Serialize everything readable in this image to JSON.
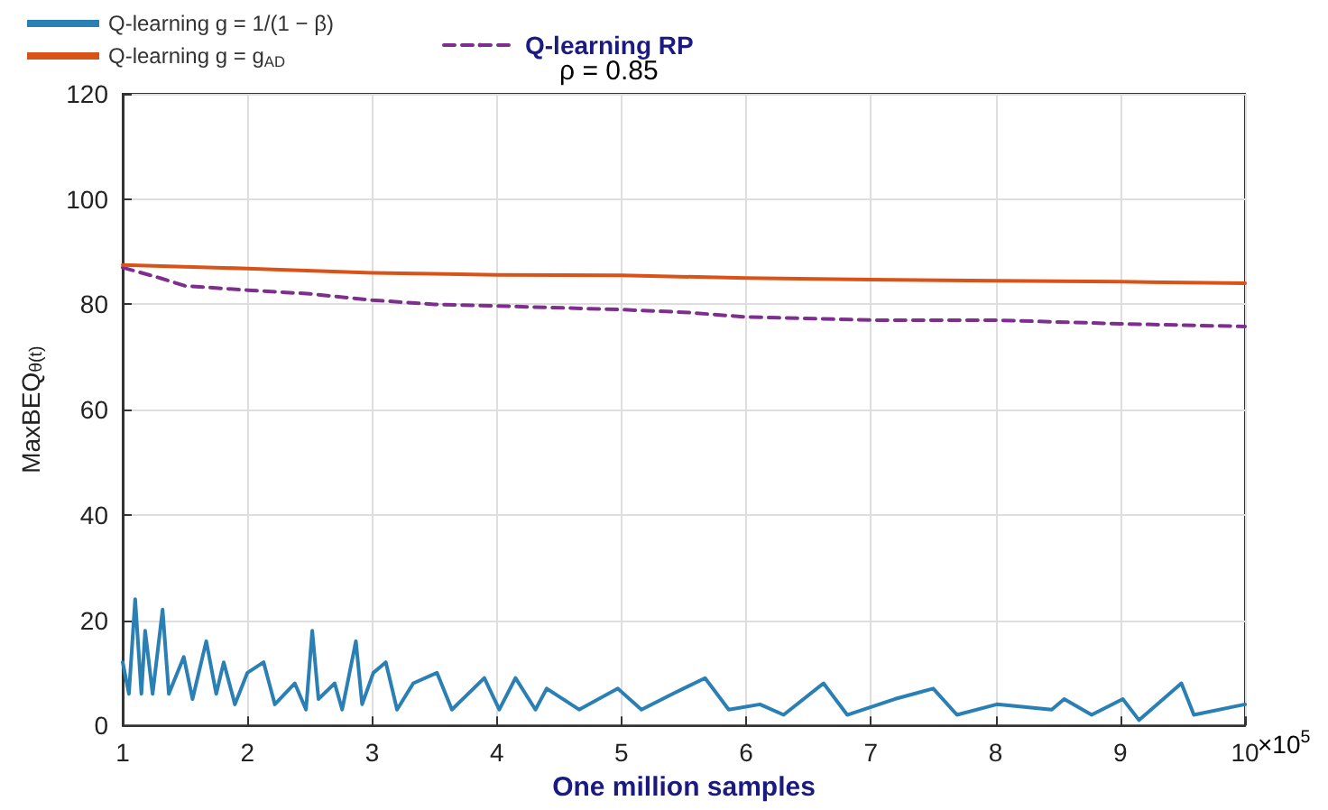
{
  "chart_data": {
    "type": "line",
    "xlabel": "One million samples",
    "ylabel": "MaxBEQ$_{θ(t)}$",
    "xlim": [
      1,
      10
    ],
    "xticks": [
      1,
      2,
      3,
      4,
      5,
      6,
      7,
      8,
      9,
      10
    ],
    "ylim": [
      0,
      120
    ],
    "yticks": [
      0,
      20,
      40,
      60,
      80,
      100,
      120
    ],
    "grid": true,
    "legend": "top left",
    "marker": "none",
    "annotations": [
      "ρ = 0.85",
      "×10$^{5}$"
    ],
    "series": [
      {
        "name": "Q-learning g = 1/(1 − β)",
        "color": "#2a7fb4",
        "line_style": "solid",
        "x": [
          1,
          1.05,
          1.1,
          1.15,
          1.18,
          1.24,
          1.32,
          1.37,
          1.49,
          1.56,
          1.67,
          1.75,
          1.81,
          1.9,
          2,
          2.13,
          2.22,
          2.38,
          2.47,
          2.52,
          2.57,
          2.7,
          2.76,
          2.87,
          2.92,
          3.01,
          3.11,
          3.2,
          3.33,
          3.52,
          3.64,
          3.9,
          4.02,
          4.15,
          4.31,
          4.4,
          4.66,
          4.97,
          5.16,
          5.41,
          5.67,
          5.86,
          6.11,
          6.3,
          6.62,
          6.81,
          7.19,
          7.5,
          7.69,
          8.01,
          8.45,
          8.55,
          8.77,
          9.02,
          9.15,
          9.49,
          9.59,
          10
        ],
        "values": [
          12,
          6,
          24,
          6,
          18,
          6,
          22,
          6,
          13,
          5,
          16,
          6,
          12,
          4,
          10,
          12,
          4,
          8,
          3,
          18,
          5,
          8,
          3,
          16,
          4,
          10,
          12,
          3,
          8,
          10,
          3,
          9,
          3,
          9,
          3,
          7,
          3,
          7,
          3,
          6,
          9,
          3,
          4,
          2,
          8,
          2,
          5,
          7,
          2,
          4,
          3,
          5,
          2,
          5,
          1,
          8,
          2,
          4
        ]
      },
      {
        "name": "Q-learning g = g$_{AD}$",
        "color": "#d95319",
        "line_style": "solid",
        "x": [
          1,
          2,
          3,
          4,
          5,
          6,
          7,
          8,
          9,
          10
        ],
        "values": [
          87.5,
          86.8,
          86,
          85.6,
          85.5,
          85,
          84.7,
          84.5,
          84.3,
          84
        ]
      },
      {
        "name": "Q-learning RP",
        "color": "#7e2f8e",
        "line_style": "dashed",
        "x": [
          1,
          1.3,
          1.5,
          2,
          2.5,
          3,
          3.5,
          4,
          5,
          5.5,
          6,
          7,
          7.5,
          8,
          9,
          10
        ],
        "values": [
          87,
          85,
          83.5,
          82.7,
          82,
          80.8,
          80,
          79.7,
          79,
          78.5,
          77.6,
          77,
          77,
          77,
          76.3,
          75.8
        ]
      }
    ]
  }
}
